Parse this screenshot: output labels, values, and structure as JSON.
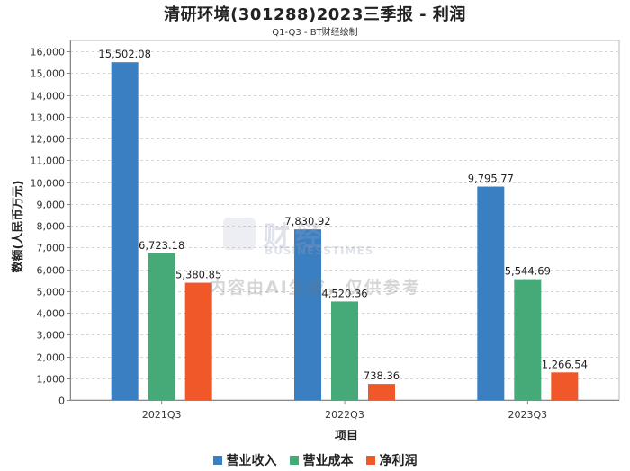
{
  "chart_data": {
    "type": "bar",
    "title": "清研环境(301288)2023三季报 - 利润",
    "subtitle": "Q1-Q3 - BT财经绘制",
    "xlabel": "项目",
    "ylabel": "数额(人民币万元)",
    "ylim": [
      0,
      16500
    ],
    "yticks": [
      0,
      1000,
      2000,
      3000,
      4000,
      5000,
      6000,
      7000,
      8000,
      9000,
      10000,
      11000,
      12000,
      13000,
      14000,
      15000,
      16000
    ],
    "ytick_labels": [
      "0",
      "1,000",
      "2,000",
      "3,000",
      "4,000",
      "5,000",
      "6,000",
      "7,000",
      "8,000",
      "9,000",
      "10,000",
      "11,000",
      "12,000",
      "13,000",
      "14,000",
      "15,000",
      "16,000"
    ],
    "categories": [
      "2021Q3",
      "2022Q3",
      "2023Q3"
    ],
    "series": [
      {
        "name": "营业收入",
        "color": "#3a7fc1",
        "values": [
          15502.08,
          7830.92,
          9795.77
        ],
        "labels": [
          "15,502.08",
          "7,830.92",
          "9,795.77"
        ]
      },
      {
        "name": "营业成本",
        "color": "#46aa78",
        "values": [
          6723.18,
          4520.36,
          5544.69
        ],
        "labels": [
          "6,723.18",
          "4,520.36",
          "5,544.69"
        ]
      },
      {
        "name": "净利润",
        "color": "#f0582a",
        "values": [
          5380.85,
          738.36,
          1266.54
        ],
        "labels": [
          "5,380.85",
          "738.36",
          "1,266.54"
        ]
      }
    ],
    "grid": true,
    "legend_position": "bottom-center"
  },
  "watermark": {
    "brand": "财经",
    "brand_sub": "BUSINESSTIMES",
    "notice": "内容由AI生成，仅供参考"
  }
}
